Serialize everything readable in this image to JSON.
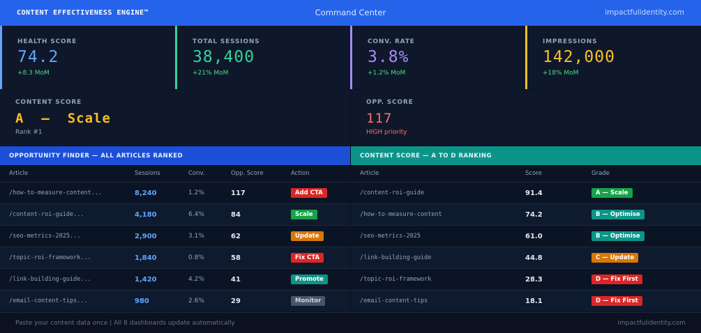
{
  "header": {
    "brand": "CONTENT EFFECTIVENESS ENGINE™",
    "title": "Command Center",
    "domain": "impactfulidentity.com",
    "bg_color": "#2563eb"
  },
  "kpis": [
    {
      "label": "HEALTH SCORE",
      "value": "74.2",
      "delta": "+8.3 MoM",
      "color": "#60a5fa"
    },
    {
      "label": "TOTAL SESSIONS",
      "value": "38,400",
      "delta": "+21% MoM",
      "color": "#34d399"
    },
    {
      "label": "CONV. RATE",
      "value": "3.8%",
      "delta": "+1.2% MoM",
      "color": "#a78bfa"
    },
    {
      "label": "IMPRESSIONS",
      "value": "142,000",
      "delta": "+18% MoM",
      "color": "#fbbf24"
    }
  ],
  "content_score": {
    "label": "CONTENT SCORE",
    "grade": "A",
    "separator": "—",
    "verdict": "Scale",
    "rank": "Rank #1",
    "color": "#fbbf24"
  },
  "opp_score": {
    "label": "OPP. SCORE",
    "value": "117",
    "priority": "HIGH priority",
    "color": "#f87171"
  },
  "opportunity_finder": {
    "title": "OPPORTUNITY FINDER — ALL ARTICLES RANKED",
    "header_color": "#1d4ed8",
    "columns": [
      "Article",
      "Sessions",
      "Conv.",
      "Opp. Score",
      "Action"
    ],
    "rows": [
      {
        "article": "/how-to-measure-content...",
        "sessions": "8,240",
        "conv": "1.2%",
        "opp": "117",
        "action": "Add CTA",
        "action_color": "#dc2626"
      },
      {
        "article": "/content-roi-guide...",
        "sessions": "4,180",
        "conv": "6.4%",
        "opp": "84",
        "action": "Scale",
        "action_color": "#16a34a"
      },
      {
        "article": "/seo-metrics-2025...",
        "sessions": "2,900",
        "conv": "3.1%",
        "opp": "62",
        "action": "Update",
        "action_color": "#d97706"
      },
      {
        "article": "/topic-roi-framework...",
        "sessions": "1,840",
        "conv": "0.8%",
        "opp": "58",
        "action": "Fix CTA",
        "action_color": "#dc2626"
      },
      {
        "article": "/link-building-guide...",
        "sessions": "1,420",
        "conv": "4.2%",
        "opp": "41",
        "action": "Promote",
        "action_color": "#0d9488"
      },
      {
        "article": "/email-content-tips...",
        "sessions": "980",
        "conv": "2.6%",
        "opp": "29",
        "action": "Monitor",
        "action_color": "#475569"
      }
    ]
  },
  "content_ranking": {
    "title": "CONTENT SCORE — A TO D RANKING",
    "header_color": "#0d9488",
    "columns": [
      "Article",
      "Score",
      "Grade"
    ],
    "rows": [
      {
        "article": "/content-roi-guide",
        "score": "91.4",
        "grade": "A — Scale",
        "grade_color": "#16a34a"
      },
      {
        "article": "/how-to-measure-content",
        "score": "74.2",
        "grade": "B — Optimise",
        "grade_color": "#0d9488"
      },
      {
        "article": "/seo-metrics-2025",
        "score": "61.0",
        "grade": "B — Optimise",
        "grade_color": "#0d9488"
      },
      {
        "article": "/link-building-guide",
        "score": "44.8",
        "grade": "C — Update",
        "grade_color": "#d97706"
      },
      {
        "article": "/topic-roi-framework",
        "score": "28.3",
        "grade": "D — Fix First",
        "grade_color": "#dc2626"
      },
      {
        "article": "/email-content-tips",
        "score": "18.1",
        "grade": "D — Fix First",
        "grade_color": "#dc2626"
      }
    ]
  },
  "footer": {
    "left": "Paste your content data once  |  All 8 dashboards update automatically",
    "right": "impactfulidentity.com"
  }
}
